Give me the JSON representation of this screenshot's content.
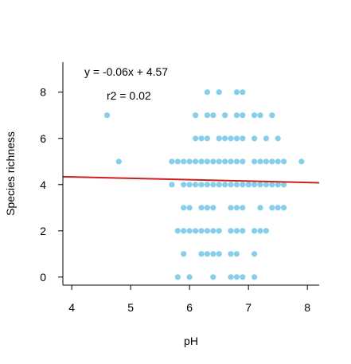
{
  "chart_data": {
    "type": "scatter",
    "xlabel": "pH",
    "ylabel": "Species richness",
    "xlim": [
      3.85,
      8.2
    ],
    "ylim": [
      -0.35,
      9.3
    ],
    "x_ticks": [
      4,
      5,
      6,
      7,
      8
    ],
    "y_ticks": [
      0,
      2,
      4,
      6,
      8
    ],
    "grid": false,
    "equation_label": "y = -0.06x + 4.57",
    "r2_label": "r2 = 0.02",
    "regression": {
      "slope": -0.06,
      "intercept": 4.57,
      "x_range": [
        3.85,
        8.2
      ]
    },
    "point_color": "#87CEEB",
    "line_color": "#CC2020",
    "points": [
      {
        "x": 4.6,
        "y": 7
      },
      {
        "x": 4.8,
        "y": 5
      },
      {
        "x": 6.3,
        "y": 8
      },
      {
        "x": 6.5,
        "y": 8
      },
      {
        "x": 6.8,
        "y": 8
      },
      {
        "x": 6.9,
        "y": 8
      },
      {
        "x": 6.1,
        "y": 7
      },
      {
        "x": 6.3,
        "y": 7
      },
      {
        "x": 6.4,
        "y": 7
      },
      {
        "x": 6.6,
        "y": 7
      },
      {
        "x": 6.8,
        "y": 7
      },
      {
        "x": 6.9,
        "y": 7
      },
      {
        "x": 7.1,
        "y": 7
      },
      {
        "x": 7.2,
        "y": 7
      },
      {
        "x": 7.4,
        "y": 7
      },
      {
        "x": 6.1,
        "y": 6
      },
      {
        "x": 6.2,
        "y": 6
      },
      {
        "x": 6.3,
        "y": 6
      },
      {
        "x": 6.5,
        "y": 6
      },
      {
        "x": 6.6,
        "y": 6
      },
      {
        "x": 6.7,
        "y": 6
      },
      {
        "x": 6.8,
        "y": 6
      },
      {
        "x": 6.9,
        "y": 6
      },
      {
        "x": 7.1,
        "y": 6
      },
      {
        "x": 7.3,
        "y": 6
      },
      {
        "x": 7.5,
        "y": 6
      },
      {
        "x": 5.7,
        "y": 5
      },
      {
        "x": 5.8,
        "y": 5
      },
      {
        "x": 5.9,
        "y": 5
      },
      {
        "x": 6.0,
        "y": 5
      },
      {
        "x": 6.1,
        "y": 5
      },
      {
        "x": 6.2,
        "y": 5
      },
      {
        "x": 6.3,
        "y": 5
      },
      {
        "x": 6.4,
        "y": 5
      },
      {
        "x": 6.5,
        "y": 5
      },
      {
        "x": 6.6,
        "y": 5
      },
      {
        "x": 6.7,
        "y": 5
      },
      {
        "x": 6.8,
        "y": 5
      },
      {
        "x": 6.9,
        "y": 5
      },
      {
        "x": 7.1,
        "y": 5
      },
      {
        "x": 7.2,
        "y": 5
      },
      {
        "x": 7.3,
        "y": 5
      },
      {
        "x": 7.4,
        "y": 5
      },
      {
        "x": 7.5,
        "y": 5
      },
      {
        "x": 7.6,
        "y": 5
      },
      {
        "x": 7.9,
        "y": 5
      },
      {
        "x": 5.7,
        "y": 4
      },
      {
        "x": 5.9,
        "y": 4
      },
      {
        "x": 6.0,
        "y": 4
      },
      {
        "x": 6.1,
        "y": 4
      },
      {
        "x": 6.2,
        "y": 4
      },
      {
        "x": 6.3,
        "y": 4
      },
      {
        "x": 6.4,
        "y": 4
      },
      {
        "x": 6.5,
        "y": 4
      },
      {
        "x": 6.6,
        "y": 4
      },
      {
        "x": 6.7,
        "y": 4
      },
      {
        "x": 6.8,
        "y": 4
      },
      {
        "x": 6.9,
        "y": 4
      },
      {
        "x": 7.0,
        "y": 4
      },
      {
        "x": 7.1,
        "y": 4
      },
      {
        "x": 7.2,
        "y": 4
      },
      {
        "x": 7.3,
        "y": 4
      },
      {
        "x": 7.4,
        "y": 4
      },
      {
        "x": 7.5,
        "y": 4
      },
      {
        "x": 7.6,
        "y": 4
      },
      {
        "x": 5.9,
        "y": 3
      },
      {
        "x": 6.0,
        "y": 3
      },
      {
        "x": 6.2,
        "y": 3
      },
      {
        "x": 6.3,
        "y": 3
      },
      {
        "x": 6.4,
        "y": 3
      },
      {
        "x": 6.7,
        "y": 3
      },
      {
        "x": 6.8,
        "y": 3
      },
      {
        "x": 6.9,
        "y": 3
      },
      {
        "x": 7.2,
        "y": 3
      },
      {
        "x": 7.4,
        "y": 3
      },
      {
        "x": 7.5,
        "y": 3
      },
      {
        "x": 7.6,
        "y": 3
      },
      {
        "x": 5.8,
        "y": 2
      },
      {
        "x": 5.9,
        "y": 2
      },
      {
        "x": 6.0,
        "y": 2
      },
      {
        "x": 6.1,
        "y": 2
      },
      {
        "x": 6.2,
        "y": 2
      },
      {
        "x": 6.3,
        "y": 2
      },
      {
        "x": 6.4,
        "y": 2
      },
      {
        "x": 6.5,
        "y": 2
      },
      {
        "x": 6.7,
        "y": 2
      },
      {
        "x": 6.8,
        "y": 2
      },
      {
        "x": 6.9,
        "y": 2
      },
      {
        "x": 7.1,
        "y": 2
      },
      {
        "x": 7.2,
        "y": 2
      },
      {
        "x": 7.3,
        "y": 2
      },
      {
        "x": 5.9,
        "y": 1
      },
      {
        "x": 6.2,
        "y": 1
      },
      {
        "x": 6.3,
        "y": 1
      },
      {
        "x": 6.4,
        "y": 1
      },
      {
        "x": 6.5,
        "y": 1
      },
      {
        "x": 6.7,
        "y": 1
      },
      {
        "x": 6.8,
        "y": 1
      },
      {
        "x": 7.1,
        "y": 1
      },
      {
        "x": 5.8,
        "y": 0
      },
      {
        "x": 6.0,
        "y": 0
      },
      {
        "x": 6.4,
        "y": 0
      },
      {
        "x": 6.7,
        "y": 0
      },
      {
        "x": 6.8,
        "y": 0
      },
      {
        "x": 6.9,
        "y": 0
      },
      {
        "x": 7.1,
        "y": 0
      }
    ]
  }
}
